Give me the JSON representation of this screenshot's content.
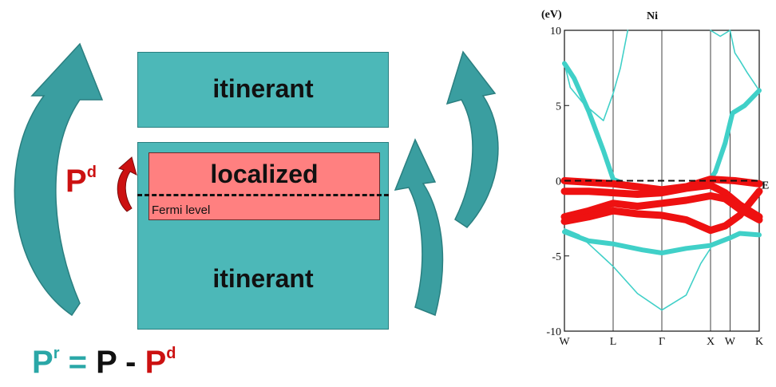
{
  "diagram": {
    "top_box_label": "itinerant",
    "localized_label": "localized",
    "fermi_label": "Fermi level",
    "bottom_box_label": "itinerant",
    "pd_symbol": "P",
    "pd_superscript": "d",
    "formula": {
      "lhs": "P",
      "lhs_sup": "r",
      "eq": " = ",
      "mid": "P",
      "minus": " - ",
      "rhs": "P",
      "rhs_sup": "d"
    },
    "colors": {
      "teal": "#4cb8b8",
      "teal_dark": "#2a7f80",
      "arrow_teal": "#3a9ea0",
      "red_box": "#ff8080",
      "red": "#cc1111",
      "formula_teal": "#2aa7a7"
    }
  },
  "chart_data": {
    "type": "line",
    "title": "Ni",
    "ylabel": "(eV)",
    "ylim": [
      -10,
      10
    ],
    "yticks": [
      "10",
      "5",
      "0",
      "-5",
      "-10"
    ],
    "kpoints": [
      "W",
      "L",
      "Γ",
      "X",
      "W",
      "K"
    ],
    "fermi_label": "E",
    "fermi_level": 0,
    "series": [
      {
        "kind": "thin-band",
        "color": "#40d0c8",
        "points": [
          [
            0,
            7.8
          ],
          [
            0.12,
            6.2
          ],
          [
            0.4,
            5.1
          ],
          [
            0.8,
            4.0
          ],
          [
            1.0,
            5.8
          ],
          [
            1.15,
            7.5
          ],
          [
            1.3,
            10
          ]
        ]
      },
      {
        "kind": "thin-band",
        "color": "#40d0c8",
        "points": [
          [
            3.0,
            10
          ],
          [
            3.2,
            9.6
          ],
          [
            3.4,
            10
          ]
        ]
      },
      {
        "kind": "thin-band",
        "color": "#40d0c8",
        "points": [
          [
            3.4,
            10
          ],
          [
            3.5,
            8.5
          ],
          [
            3.6,
            8.0
          ],
          [
            3.75,
            7.2
          ],
          [
            4.0,
            6.0
          ]
        ]
      },
      {
        "kind": "thin-band",
        "color": "#40d0c8",
        "points": [
          [
            0,
            -3.2
          ],
          [
            0.3,
            -3.6
          ],
          [
            0.6,
            -4.5
          ],
          [
            1.0,
            -5.7
          ],
          [
            1.5,
            -7.5
          ],
          [
            2.0,
            -8.6
          ],
          [
            2.5,
            -7.6
          ],
          [
            2.8,
            -5.5
          ],
          [
            3.0,
            -4.5
          ]
        ]
      },
      {
        "kind": "thick-band",
        "color": "#40d0c8",
        "points": [
          [
            0,
            7.8
          ],
          [
            0.2,
            6.8
          ],
          [
            0.5,
            4.6
          ],
          [
            0.8,
            2.0
          ],
          [
            1.0,
            0.1
          ],
          [
            1.3,
            -0.3
          ],
          [
            2.0,
            -0.6
          ],
          [
            2.6,
            -0.3
          ],
          [
            2.85,
            -0.1
          ],
          [
            3.0,
            0.1
          ],
          [
            3.1,
            0.6
          ],
          [
            3.3,
            2.5
          ],
          [
            3.45,
            4.5
          ],
          [
            3.7,
            5.0
          ],
          [
            4.0,
            6.0
          ]
        ]
      },
      {
        "kind": "thick-band",
        "color": "#40d0c8",
        "points": [
          [
            0,
            -3.4
          ],
          [
            0.5,
            -4.0
          ],
          [
            1.0,
            -4.2
          ],
          [
            1.6,
            -4.6
          ],
          [
            2.0,
            -4.8
          ],
          [
            2.5,
            -4.5
          ],
          [
            3.0,
            -4.3
          ],
          [
            3.4,
            -3.8
          ],
          [
            3.6,
            -3.5
          ],
          [
            4.0,
            -3.6
          ]
        ]
      },
      {
        "kind": "d-band",
        "color": "#ee1111",
        "points": [
          [
            0,
            0.0
          ],
          [
            0.5,
            -0.1
          ],
          [
            1.0,
            -0.2
          ],
          [
            1.5,
            -0.4
          ],
          [
            2.0,
            -0.6
          ],
          [
            2.5,
            -0.4
          ],
          [
            3.0,
            0.1
          ],
          [
            3.5,
            0.0
          ],
          [
            4.0,
            -0.2
          ]
        ]
      },
      {
        "kind": "d-band",
        "color": "#ee1111",
        "points": [
          [
            0,
            -0.7
          ],
          [
            0.5,
            -0.7
          ],
          [
            1.0,
            -0.8
          ],
          [
            1.5,
            -0.9
          ],
          [
            2.0,
            -0.8
          ],
          [
            2.5,
            -0.5
          ],
          [
            3.0,
            -0.3
          ],
          [
            3.3,
            -0.8
          ],
          [
            3.6,
            -1.6
          ],
          [
            4.0,
            -2.4
          ]
        ]
      },
      {
        "kind": "d-band",
        "color": "#ee1111",
        "points": [
          [
            0,
            -2.4
          ],
          [
            0.5,
            -2.0
          ],
          [
            1.0,
            -1.5
          ],
          [
            1.5,
            -1.7
          ],
          [
            2.0,
            -1.5
          ],
          [
            2.5,
            -1.3
          ],
          [
            3.0,
            -1.0
          ],
          [
            3.3,
            -1.2
          ],
          [
            3.6,
            -1.9
          ],
          [
            4.0,
            -2.6
          ]
        ]
      },
      {
        "kind": "d-band",
        "color": "#ee1111",
        "points": [
          [
            0,
            -2.7
          ],
          [
            0.5,
            -2.4
          ],
          [
            1.0,
            -2.0
          ],
          [
            1.5,
            -2.2
          ],
          [
            2.0,
            -2.3
          ],
          [
            2.5,
            -2.6
          ],
          [
            3.0,
            -3.3
          ],
          [
            3.3,
            -3.0
          ],
          [
            3.6,
            -2.3
          ],
          [
            4.0,
            -0.7
          ]
        ]
      }
    ]
  }
}
